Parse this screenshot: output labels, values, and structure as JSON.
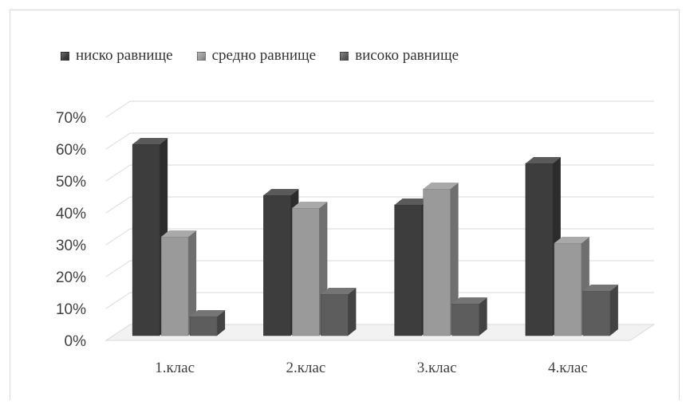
{
  "chart_data": {
    "type": "bar",
    "categories": [
      "1.клас",
      "2.клас",
      "3.клас",
      "4.клас"
    ],
    "series": [
      {
        "name": "ниско равнище",
        "values": [
          60,
          44,
          41,
          54
        ],
        "color": "#3d3d3d"
      },
      {
        "name": "средно равнище",
        "values": [
          31,
          40,
          46,
          29
        ],
        "color": "#9a9a9a"
      },
      {
        "name": "високо равнище",
        "values": [
          6,
          13,
          10,
          14
        ],
        "color": "#5d5d5d"
      }
    ],
    "yticks": [
      "0%",
      "10%",
      "20%",
      "30%",
      "40%",
      "50%",
      "60%",
      "70%"
    ],
    "ylim": [
      0,
      70
    ],
    "grid": true,
    "legend_position": "top"
  }
}
